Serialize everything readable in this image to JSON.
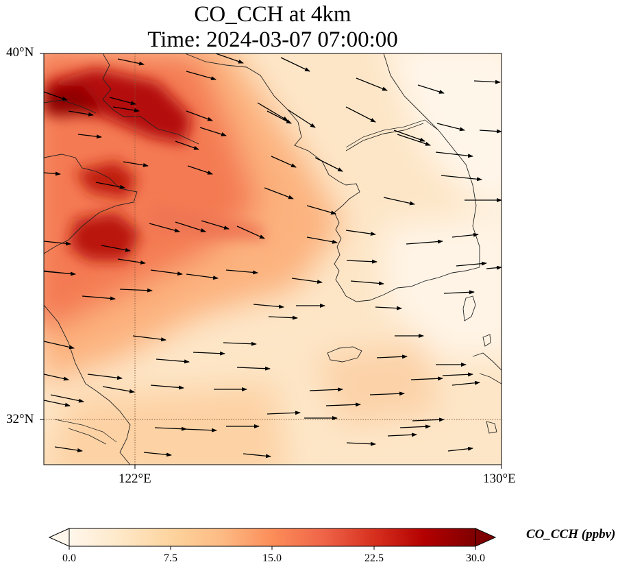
{
  "title_line1": "CO_CCH at 4km",
  "title_line2": "Time: 2024-03-07 07:00:00",
  "lat_labels": [
    "40°N",
    "32°N"
  ],
  "lon_labels": [
    "122°E",
    "130°E"
  ],
  "extent": {
    "lon_min": 120,
    "lon_max": 130,
    "lat_min": 31,
    "lat_max": 40
  },
  "gridlines": {
    "lons": [
      122
    ],
    "lats": [
      32
    ]
  },
  "colorbar": {
    "label": "CO_CCH (ppbv)",
    "ticks": [
      "0.0",
      "7.5",
      "15.0",
      "22.5",
      "30.0"
    ],
    "min": 0,
    "max": 30,
    "extend": "both",
    "colormap": "OrRd",
    "colors": [
      "#fff7ec",
      "#fee8c8",
      "#fdd49e",
      "#fdbb84",
      "#fc8d59",
      "#ef6548",
      "#d7301f",
      "#b30000",
      "#7f0000"
    ]
  },
  "wind_vectors_shown": true
}
